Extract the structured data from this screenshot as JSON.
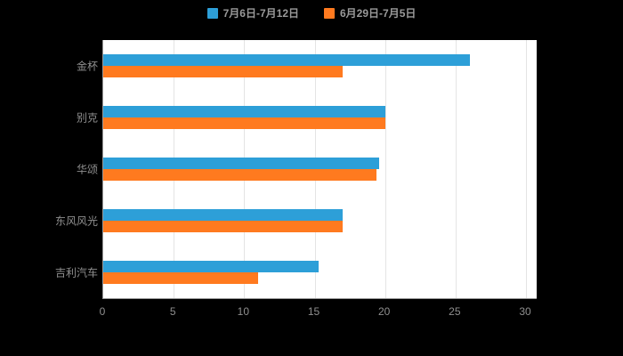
{
  "chart_data": {
    "type": "bar",
    "orientation": "horizontal",
    "title": "",
    "xlabel": "",
    "ylabel": "",
    "categories": [
      "金杯",
      "别克",
      "华颂",
      "东风风光",
      "吉利汽车"
    ],
    "series": [
      {
        "name": "7月6日-7月12日",
        "color": "#2D9FD8",
        "values": [
          26,
          20,
          19.6,
          17,
          15.3
        ]
      },
      {
        "name": "6月29日-7月5日",
        "color": "#FF7A1F",
        "values": [
          17,
          20,
          19.4,
          17,
          11
        ]
      }
    ],
    "xlim": [
      0,
      30
    ],
    "xticks": [
      0,
      5,
      10,
      15,
      20,
      25,
      30
    ],
    "grid": "vertical-lines",
    "legend_position": "top-center",
    "plot_background": "#ffffff",
    "page_background": "#000000",
    "label_color": "#8f8f8f"
  }
}
